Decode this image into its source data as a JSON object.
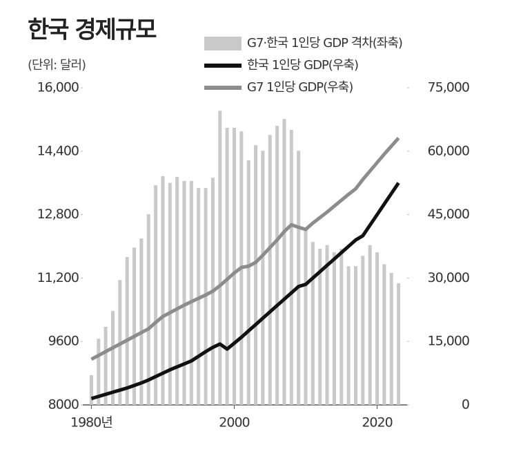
{
  "chart_data": {
    "type": "bar",
    "title": "한국 경제규모",
    "subtitle": "(단위: 달러)",
    "x": [
      1980,
      1981,
      1982,
      1983,
      1984,
      1985,
      1986,
      1987,
      1988,
      1989,
      1990,
      1991,
      1992,
      1993,
      1994,
      1995,
      1996,
      1997,
      1998,
      1999,
      2000,
      2001,
      2002,
      2003,
      2004,
      2005,
      2006,
      2007,
      2008,
      2009,
      2010,
      2011,
      2012,
      2013,
      2014,
      2015,
      2016,
      2017,
      2018,
      2019,
      2020,
      2021,
      2022,
      2023
    ],
    "series": [
      {
        "name": "G7·한국 1인당 GDP 격차(좌축)",
        "type": "bar",
        "axis": "y",
        "color": "#c9c9c9",
        "values": [
          8750,
          9670,
          9970,
          10370,
          11150,
          11730,
          11970,
          12200,
          12810,
          13540,
          13770,
          13600,
          13750,
          13650,
          13650,
          13470,
          13470,
          13730,
          15420,
          14990,
          14990,
          14900,
          14170,
          14550,
          14410,
          14810,
          15040,
          15210,
          14940,
          14410,
          12460,
          12110,
          11940,
          12030,
          11850,
          11940,
          11500,
          11500,
          11760,
          12030,
          11850,
          11550,
          11330,
          11070
        ]
      },
      {
        "name": "한국 1인당 GDP(우축)",
        "type": "line",
        "axis": "y2",
        "color": "#111111",
        "values": [
          1500,
          2000,
          2500,
          3000,
          3500,
          4000,
          4600,
          5200,
          5900,
          6700,
          7500,
          8300,
          9000,
          9700,
          10400,
          11500,
          12600,
          13600,
          14400,
          13200,
          14600,
          16000,
          17500,
          19000,
          20500,
          22000,
          23500,
          25000,
          26500,
          28000,
          28500,
          30000,
          31500,
          33000,
          34500,
          36000,
          37500,
          39000,
          40000,
          42500,
          45000,
          47500,
          50000,
          52500
        ]
      },
      {
        "name": "G7 1인당 GDP(우축)",
        "type": "line",
        "axis": "y2",
        "color": "#8c8c8c",
        "values": [
          10800,
          11700,
          12600,
          13500,
          14400,
          15300,
          16200,
          17100,
          18000,
          19500,
          20900,
          21800,
          22700,
          23600,
          24400,
          25200,
          26000,
          26900,
          28200,
          29700,
          31200,
          32500,
          32800,
          33700,
          35400,
          37200,
          39000,
          41000,
          42600,
          42000,
          41500,
          43000,
          44300,
          45600,
          47000,
          48400,
          49800,
          51100,
          53300,
          55300,
          57300,
          59300,
          61200,
          63100
        ]
      }
    ],
    "xlim": [
      1978.8,
      2024.2
    ],
    "xticks": [
      {
        "value": 1980,
        "label": "1980년"
      },
      2000,
      2020
    ],
    "ylim": [
      8000,
      16000
    ],
    "yticks": [
      8000,
      9600,
      {
        "value": 11200,
        "label": "11,200"
      },
      {
        "value": 12800,
        "label": "12,800"
      },
      {
        "value": 14400,
        "label": "14,400"
      },
      {
        "value": 16000,
        "label": "16,000"
      }
    ],
    "y2lim": [
      0,
      75000
    ],
    "y2ticks": [
      0,
      {
        "value": 15000,
        "label": "15,000"
      },
      {
        "value": 30000,
        "label": "30,000"
      },
      {
        "value": 45000,
        "label": "45,000"
      },
      {
        "value": 60000,
        "label": "60,000"
      },
      {
        "value": 75000,
        "label": "75,000"
      }
    ],
    "grid": false
  }
}
